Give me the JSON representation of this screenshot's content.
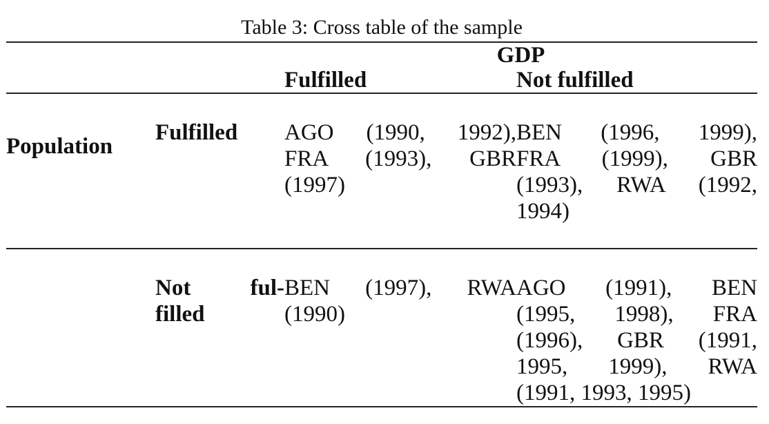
{
  "page": {
    "caption": "Table 3: Cross table of the sample",
    "background_color": "#ffffff",
    "text_color": "#111111",
    "rule_color": "#222222"
  },
  "table": {
    "col_group_header": "GDP",
    "col_headers": [
      "Fulfilled",
      "Not fulfilled"
    ],
    "row_group_header": "Population",
    "rows": [
      {
        "label": "Fulfilled",
        "label_lines": [
          "Fulfilled"
        ],
        "cells": [
          {
            "text": "AGO (1990, 1992), FRA (1993), GBR (1997)",
            "lines": [
              "AGO (1990, 1992),",
              "FRA (1993), GBR",
              "(1997)"
            ]
          },
          {
            "text": "BEN (1996, 1999), FRA (1999), GBR (1993), RWA (1992, 1994)",
            "lines": [
              "BEN (1996, 1999),",
              "FRA (1999), GBR",
              "(1993), RWA (1992,",
              "1994)"
            ]
          }
        ]
      },
      {
        "label": "Not fulfilled",
        "label_lines": [
          "Not ful-",
          "filled"
        ],
        "cells": [
          {
            "text": "BEN (1997), RWA (1990)",
            "lines": [
              "BEN (1997), RWA",
              "(1990)"
            ]
          },
          {
            "text": "AGO (1991), BEN (1995, 1998), FRA (1996), GBR (1991, 1995, 1999), RWA (1991, 1993, 1995)",
            "lines": [
              "AGO (1991), BEN",
              "(1995, 1998), FRA",
              "(1996), GBR (1991,",
              "1995, 1999), RWA",
              "(1991, 1993, 1995)"
            ]
          }
        ]
      }
    ]
  }
}
